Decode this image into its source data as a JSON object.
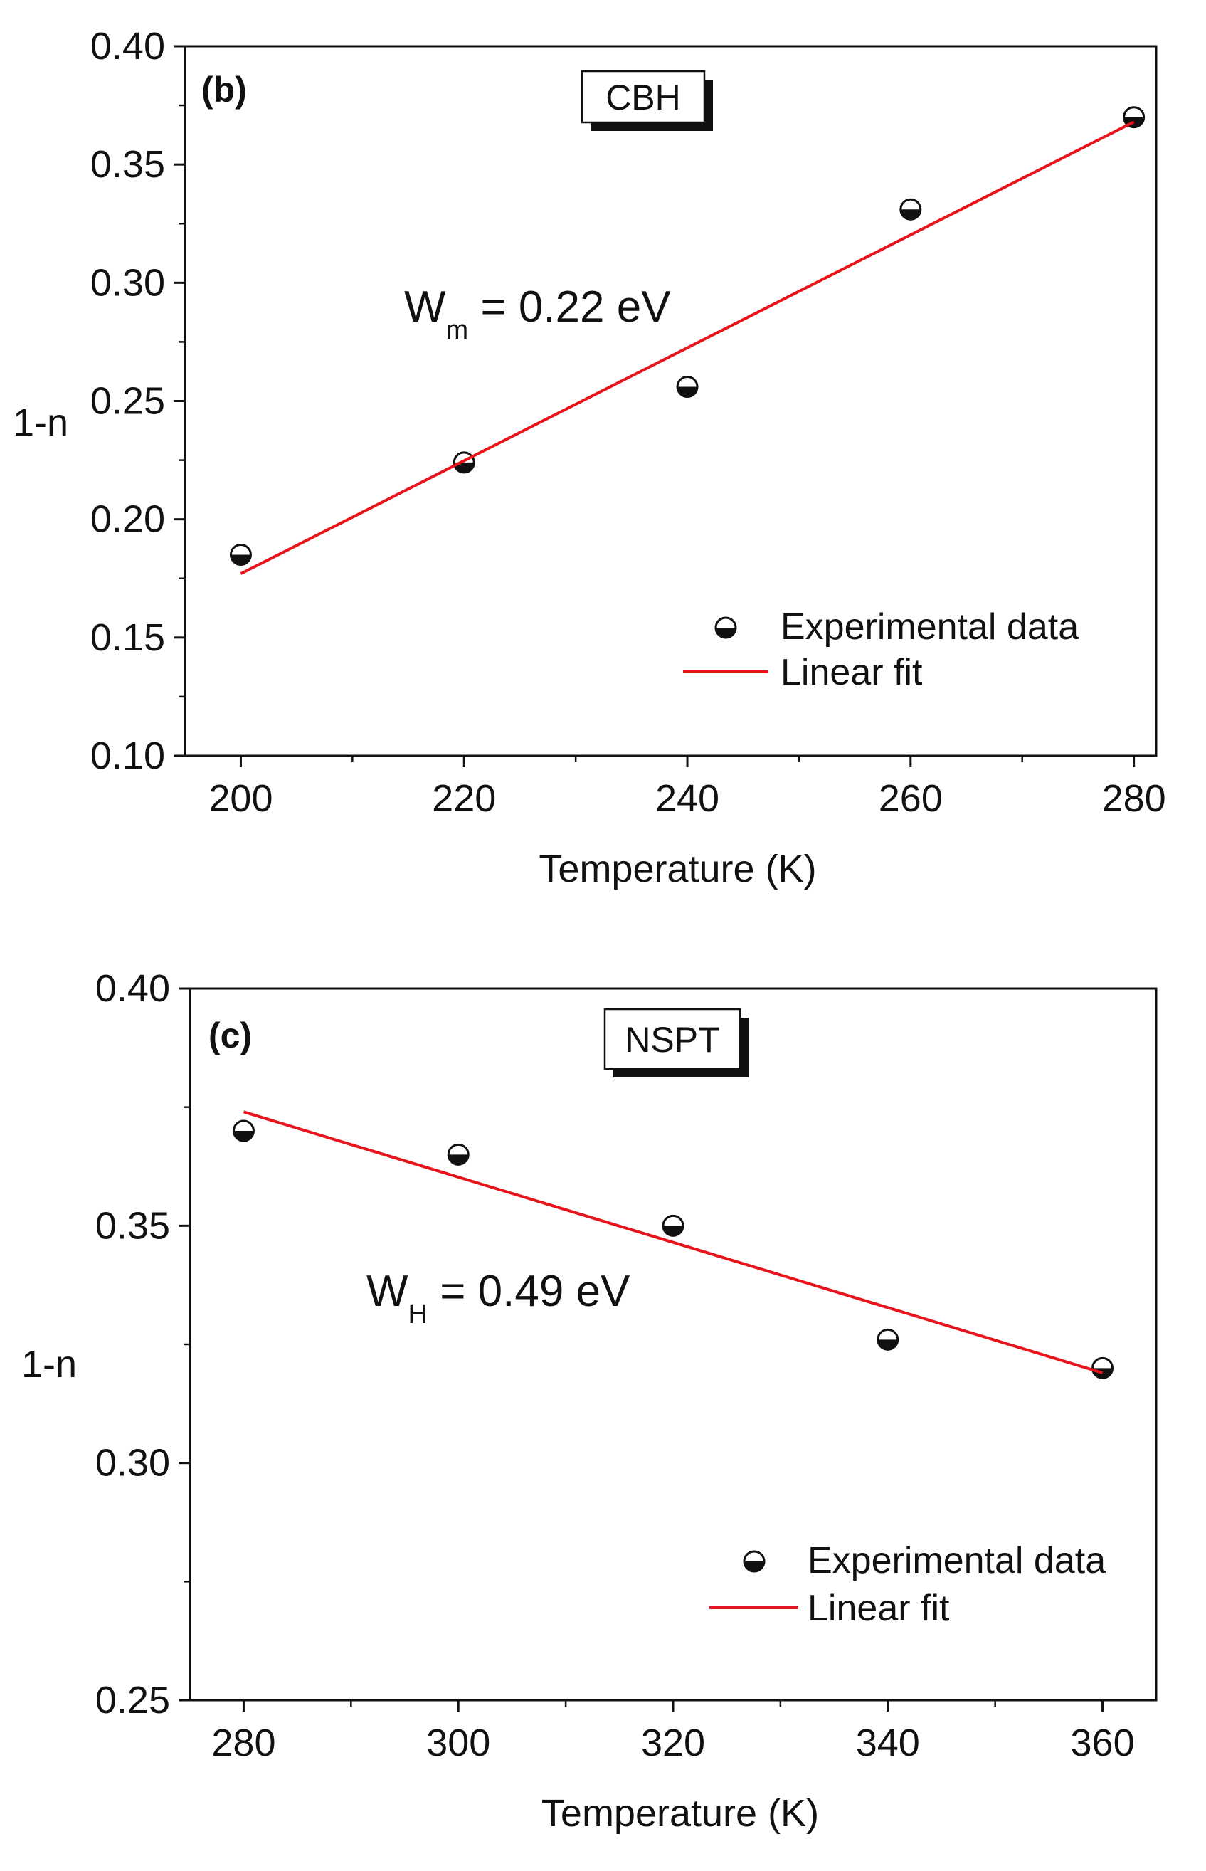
{
  "chart_data": [
    {
      "type": "scatter",
      "panel_label": "(b)",
      "model_label": "CBH",
      "xlabel": "Temperature (K)",
      "ylabel": "1-n",
      "xlim": [
        195,
        282
      ],
      "ylim": [
        0.1,
        0.4
      ],
      "x_ticks": [
        200,
        220,
        240,
        260,
        280
      ],
      "x_tick_labels": [
        "200",
        "220",
        "240",
        "260",
        "280"
      ],
      "y_ticks": [
        0.1,
        0.15,
        0.2,
        0.25,
        0.3,
        0.35,
        0.4
      ],
      "y_tick_labels": [
        "0.10",
        "0.15",
        "0.20",
        "0.25",
        "0.30",
        "0.35",
        "0.40"
      ],
      "annotation": {
        "symbol": "W",
        "subscript": "m",
        "value_text": " = 0.22 eV"
      },
      "series": [
        {
          "name": "Experimental data",
          "kind": "points",
          "x": [
            200,
            220,
            240,
            260,
            280
          ],
          "y": [
            0.185,
            0.224,
            0.256,
            0.331,
            0.37
          ]
        },
        {
          "name": "Linear fit",
          "kind": "line",
          "color": "#e8141c",
          "x": [
            200,
            280
          ],
          "y": [
            0.177,
            0.368
          ]
        }
      ],
      "legend": {
        "position": "bottom-right",
        "entries": [
          "Experimental data",
          "Linear fit"
        ]
      }
    },
    {
      "type": "scatter",
      "panel_label": "(c)",
      "model_label": "NSPT",
      "xlabel": "Temperature (K)",
      "ylabel": "1-n",
      "xlim": [
        275,
        365
      ],
      "ylim": [
        0.25,
        0.4
      ],
      "x_ticks": [
        280,
        300,
        320,
        340,
        360
      ],
      "x_tick_labels": [
        "280",
        "300",
        "320",
        "340",
        "360"
      ],
      "y_ticks": [
        0.25,
        0.3,
        0.35,
        0.4
      ],
      "y_tick_labels": [
        "0.25",
        "0.30",
        "0.35",
        "0.40"
      ],
      "annotation": {
        "symbol": "W",
        "subscript": "H",
        "value_text": " = 0.49 eV"
      },
      "series": [
        {
          "name": "Experimental data",
          "kind": "points",
          "x": [
            280,
            300,
            320,
            340,
            360
          ],
          "y": [
            0.37,
            0.365,
            0.35,
            0.326,
            0.32
          ]
        },
        {
          "name": "Linear fit",
          "kind": "line",
          "color": "#e8141c",
          "x": [
            280,
            360
          ],
          "y": [
            0.374,
            0.319
          ]
        }
      ],
      "legend": {
        "position": "bottom-right",
        "entries": [
          "Experimental data",
          "Linear fit"
        ]
      }
    }
  ]
}
